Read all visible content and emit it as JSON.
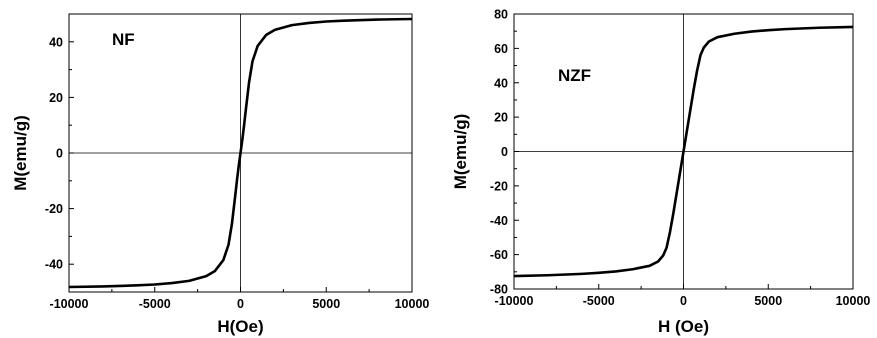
{
  "chart_data": [
    {
      "type": "line",
      "label": "NF",
      "xlabel": "H(Oe)",
      "ylabel": "M(emu/g)",
      "xlim": [
        -10000,
        10000
      ],
      "ylim": [
        -50,
        50
      ],
      "xticks": [
        -10000,
        -5000,
        0,
        5000,
        10000
      ],
      "xtick_labels": [
        "-10000",
        "-5000",
        "0",
        "5000",
        "10000"
      ],
      "yticks": [
        -40,
        -20,
        0,
        20,
        40
      ],
      "ytick_labels": [
        "-40",
        "-20",
        "0",
        "20",
        "40"
      ],
      "zero_lines": true,
      "series": [
        {
          "x": [
            -10000,
            -8000,
            -6000,
            -5000,
            -4000,
            -3000,
            -2000,
            -1500,
            -1000,
            -700,
            -500,
            -300,
            -200,
            -100,
            0,
            100,
            200,
            300,
            500,
            700,
            1000,
            1500,
            2000,
            3000,
            4000,
            5000,
            6000,
            8000,
            10000
          ],
          "y": [
            -48.2,
            -48.0,
            -47.6,
            -47.3,
            -46.8,
            -46.0,
            -44.3,
            -42.5,
            -38.5,
            -33.0,
            -25.5,
            -15.0,
            -9.5,
            -4.5,
            0,
            4.5,
            9.5,
            15.0,
            25.5,
            33.0,
            38.5,
            42.5,
            44.3,
            46.0,
            46.8,
            47.3,
            47.6,
            48.0,
            48.2
          ]
        }
      ]
    },
    {
      "type": "line",
      "label": "NZF",
      "xlabel": "H (Oe)",
      "ylabel": "M(emu/g)",
      "xlim": [
        -10000,
        10000
      ],
      "ylim": [
        -80,
        80
      ],
      "xticks": [
        -10000,
        -5000,
        0,
        5000,
        10000
      ],
      "xtick_labels": [
        "-10000",
        "-5000",
        "0",
        "5000",
        "10000"
      ],
      "yticks": [
        -80,
        -60,
        -40,
        -20,
        0,
        20,
        40,
        60,
        80
      ],
      "ytick_labels": [
        "-80",
        "-60",
        "-40",
        "-20",
        "0",
        "20",
        "40",
        "60",
        "80"
      ],
      "zero_lines": true,
      "series": [
        {
          "x": [
            -10000,
            -8000,
            -6000,
            -5000,
            -4000,
            -3000,
            -2000,
            -1500,
            -1200,
            -1000,
            -800,
            -600,
            -400,
            -200,
            0,
            200,
            400,
            600,
            800,
            1000,
            1200,
            1500,
            2000,
            3000,
            4000,
            5000,
            6000,
            8000,
            10000
          ],
          "y": [
            -72.5,
            -72.0,
            -71.2,
            -70.6,
            -69.8,
            -68.5,
            -66.5,
            -64.0,
            -60.5,
            -56.0,
            -47.0,
            -36.0,
            -24.0,
            -12.0,
            0,
            12.0,
            24.0,
            36.0,
            47.0,
            56.0,
            60.5,
            64.0,
            66.5,
            68.5,
            69.8,
            70.6,
            71.2,
            72.0,
            72.5
          ]
        }
      ]
    }
  ]
}
